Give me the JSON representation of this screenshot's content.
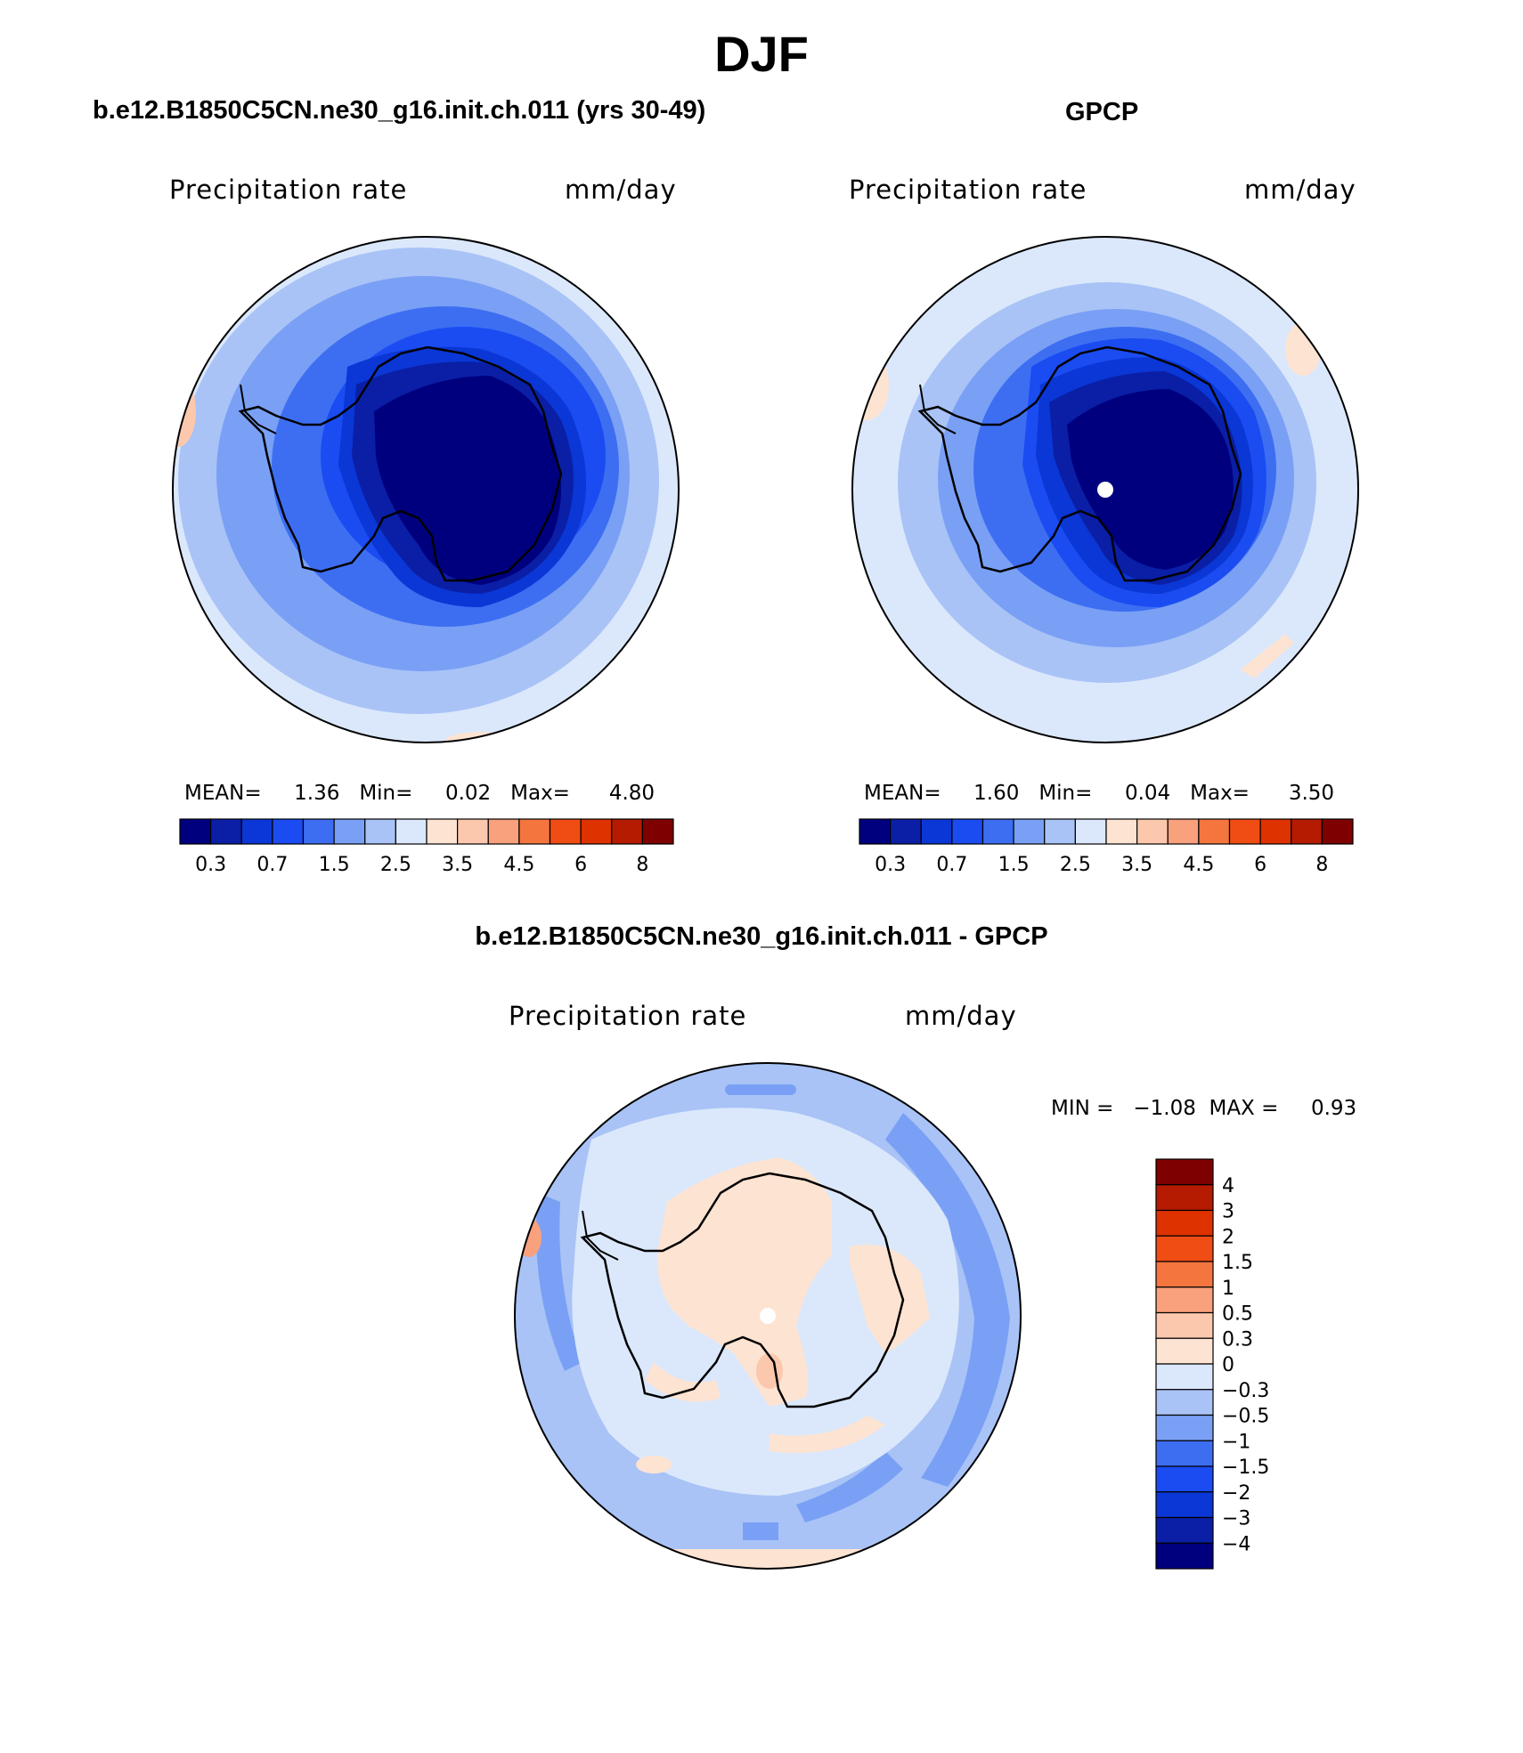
{
  "title": "DJF",
  "colors": {
    "abs_palette": [
      "#00007f",
      "#0a1fa6",
      "#0a37d5",
      "#1a4cf2",
      "#3d6ef2",
      "#7aa0f5",
      "#a9c3f7",
      "#dbe8fb",
      "#fde3d2",
      "#fbc8ae",
      "#f9a07d",
      "#f5753f",
      "#f04d14",
      "#de3200",
      "#b51b00",
      "#7f0000"
    ],
    "diff_palette": [
      "#7f0000",
      "#b51b00",
      "#de3200",
      "#f04d14",
      "#f5753f",
      "#f9a07d",
      "#fbc8ae",
      "#fde3d2",
      "#dbe8fb",
      "#a9c3f7",
      "#7aa0f5",
      "#3d6ef2",
      "#1a4cf2",
      "#0a37d5",
      "#0a1fa6",
      "#00007f"
    ]
  },
  "panels": [
    {
      "title": "b.e12.B1850C5CN.ne30_g16.init.ch.011 (yrs 30-49)",
      "variable": "Precipitation rate",
      "units": "mm/day",
      "stats": {
        "mean_label": "MEAN=",
        "mean": "1.36",
        "min_label": "Min=",
        "min": "0.02",
        "max_label": "Max=",
        "max": "4.80"
      },
      "colorbar_labels": [
        "0.3",
        "0.7",
        "1.5",
        "2.5",
        "3.5",
        "4.5",
        "6",
        "8"
      ]
    },
    {
      "title": "GPCP",
      "variable": "Precipitation rate",
      "units": "mm/day",
      "stats": {
        "mean_label": "MEAN=",
        "mean": "1.60",
        "min_label": "Min=",
        "min": "0.04",
        "max_label": "Max=",
        "max": "3.50"
      },
      "colorbar_labels": [
        "0.3",
        "0.7",
        "1.5",
        "2.5",
        "3.5",
        "4.5",
        "6",
        "8"
      ]
    },
    {
      "title": "b.e12.B1850C5CN.ne30_g16.init.ch.011 - GPCP",
      "variable": "Precipitation rate",
      "units": "mm/day",
      "stats": {
        "min_label": "MIN =",
        "min": "−1.08",
        "max_label": "MAX =",
        "max": "0.93"
      },
      "colorbar_labels": [
        "4",
        "3",
        "2",
        "1.5",
        "1",
        "0.5",
        "0.3",
        "0",
        "−0.3",
        "−0.5",
        "−1",
        "−1.5",
        "−2",
        "−3",
        "−4"
      ]
    }
  ]
}
